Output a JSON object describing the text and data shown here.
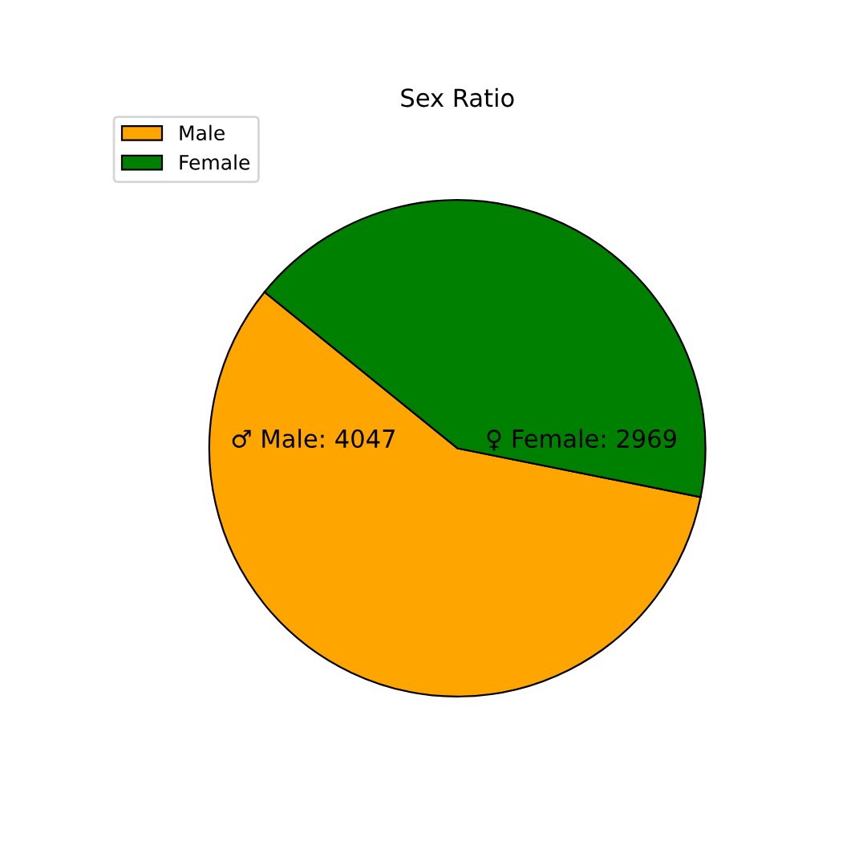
{
  "chart_data": {
    "type": "pie",
    "title": "Sex Ratio",
    "categories": [
      "Male",
      "Female"
    ],
    "values": [
      4047,
      2969
    ],
    "colors": [
      "#ffa500",
      "#008000"
    ],
    "value_labels": [
      "♂ Male: 4047",
      "♀ Female: 2969"
    ],
    "legend": "top left"
  }
}
